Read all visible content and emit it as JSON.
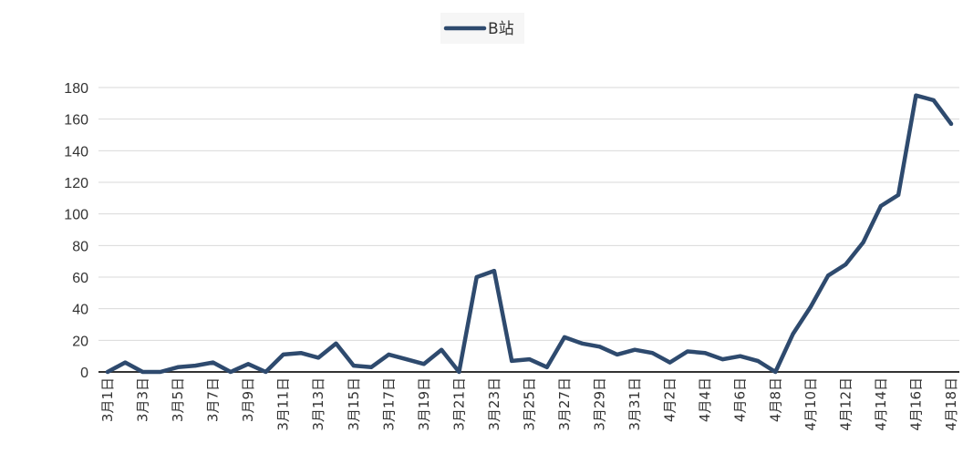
{
  "chart_data": {
    "type": "line",
    "title": "",
    "xlabel": "",
    "ylabel": "",
    "ylim": [
      0,
      180
    ],
    "yticks": [
      0,
      20,
      40,
      60,
      80,
      100,
      120,
      140,
      160,
      180
    ],
    "grid": true,
    "legend_position": "top",
    "categories": [
      "3月1日",
      "3月2日",
      "3月3日",
      "3月4日",
      "3月5日",
      "3月6日",
      "3月7日",
      "3月8日",
      "3月9日",
      "3月10日",
      "3月11日",
      "3月12日",
      "3月13日",
      "3月14日",
      "3月15日",
      "3月16日",
      "3月17日",
      "3月18日",
      "3月19日",
      "3月20日",
      "3月21日",
      "3月22日",
      "3月23日",
      "3月24日",
      "3月25日",
      "3月26日",
      "3月27日",
      "3月28日",
      "3月29日",
      "3月30日",
      "3月31日",
      "4月1日",
      "4月2日",
      "4月3日",
      "4月4日",
      "4月5日",
      "4月6日",
      "4月7日",
      "4月8日",
      "4月9日",
      "4月10日",
      "4月11日",
      "4月12日",
      "4月13日",
      "4月14日",
      "4月15日",
      "4月16日",
      "4月17日",
      "4月18日"
    ],
    "tick_labels": [
      "3月1日",
      "3月3日",
      "3月5日",
      "3月7日",
      "3月9日",
      "3月11日",
      "3月13日",
      "3月15日",
      "3月17日",
      "3月19日",
      "3月21日",
      "3月23日",
      "3月25日",
      "3月27日",
      "3月29日",
      "3月31日",
      "4月2日",
      "4月4日",
      "4月6日",
      "4月8日",
      "4月10日",
      "4月12日",
      "4月14日",
      "4月16日",
      "4月18日"
    ],
    "series": [
      {
        "name": "B站",
        "color": "#2e4a6e",
        "values": [
          0,
          6,
          0,
          0,
          3,
          4,
          6,
          0,
          5,
          0,
          11,
          12,
          9,
          18,
          4,
          3,
          11,
          8,
          5,
          14,
          0,
          60,
          64,
          7,
          8,
          3,
          22,
          18,
          16,
          11,
          14,
          12,
          6,
          13,
          12,
          8,
          10,
          7,
          0,
          24,
          41,
          61,
          68,
          82,
          105,
          112,
          175,
          172,
          157
        ]
      }
    ]
  }
}
